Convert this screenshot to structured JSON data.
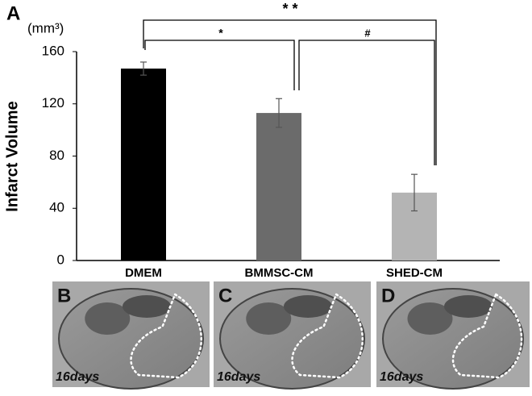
{
  "panel_label": "A",
  "chart_data": {
    "type": "bar",
    "unit_label": "(mm³)",
    "ylabel": "Infarct Volume",
    "categories": [
      "DMEM",
      "BMMSC-CM",
      "SHED-CM"
    ],
    "values": [
      147,
      113,
      52
    ],
    "errors": [
      5,
      11,
      14
    ],
    "colors": [
      "#000000",
      "#6b6b6b",
      "#b4b4b4"
    ],
    "ylim": [
      0,
      160
    ],
    "yticks": [
      0,
      40,
      80,
      120,
      160
    ],
    "annotations": [
      "* *",
      "*",
      "#"
    ]
  },
  "panels": [
    {
      "label": "B",
      "caption": "16days"
    },
    {
      "label": "C",
      "caption": "16days"
    },
    {
      "label": "D",
      "caption": "16days"
    }
  ]
}
